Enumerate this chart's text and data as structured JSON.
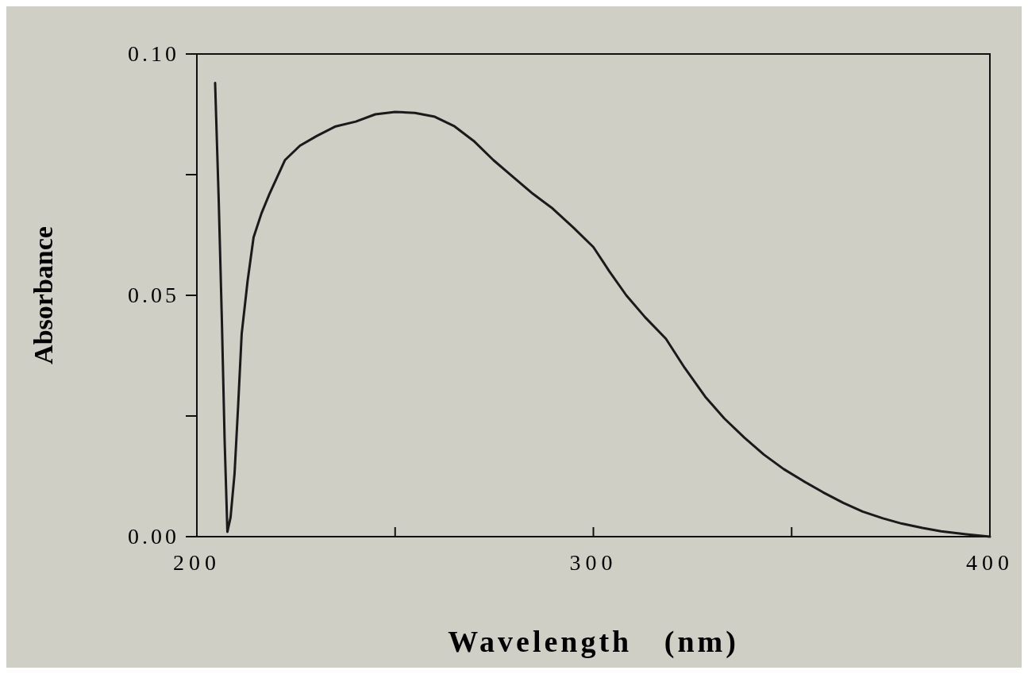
{
  "chart_data": {
    "type": "line",
    "xlabel": "Wavelength   (nm)",
    "ylabel": "Absorbance",
    "xlim": [
      200,
      400
    ],
    "ylim": [
      0,
      0.1
    ],
    "xticks": [
      200,
      {
        "value": 250,
        "label": null
      },
      300,
      {
        "value": 350,
        "label": null
      },
      400
    ],
    "yticks": [
      {
        "value": 0,
        "label": "0.00"
      },
      {
        "value": 0.025,
        "label": null
      },
      {
        "value": 0.05,
        "label": "0.05"
      },
      {
        "value": 0.075,
        "label": null
      },
      {
        "value": 0.1,
        "label": "0.10"
      }
    ],
    "grid": false,
    "series": [
      {
        "color": "#1a1a1a",
        "x": [
          204.6,
          205.5,
          206.3,
          207.0,
          207.7,
          208.5,
          209.5,
          210.4,
          211.3,
          212.8,
          214.3,
          216.3,
          218.3,
          222.2,
          226,
          230.2,
          235,
          240.1,
          245,
          250,
          255,
          260,
          265,
          269.8,
          274.8,
          279.8,
          284.8,
          289.7,
          295,
          300,
          304,
          308.3,
          313,
          318.3,
          323,
          328.2,
          333,
          338.1,
          343,
          348,
          353,
          357.9,
          363,
          367.9,
          373,
          377.8,
          383,
          387.7,
          394,
          400
        ],
        "values": [
          0.094,
          0.07,
          0.045,
          0.02,
          0.001,
          0.004,
          0.013,
          0.027,
          0.042,
          0.053,
          0.062,
          0.067,
          0.071,
          0.078,
          0.081,
          0.083,
          0.085,
          0.086,
          0.0875,
          0.088,
          0.0878,
          0.087,
          0.085,
          0.082,
          0.078,
          0.0745,
          0.071,
          0.068,
          0.064,
          0.06,
          0.055,
          0.05,
          0.0455,
          0.041,
          0.035,
          0.029,
          0.0245,
          0.0205,
          0.017,
          0.014,
          0.0115,
          0.0092,
          0.007,
          0.0052,
          0.0038,
          0.0027,
          0.0018,
          0.0011,
          0.0005,
          0
        ]
      }
    ]
  }
}
